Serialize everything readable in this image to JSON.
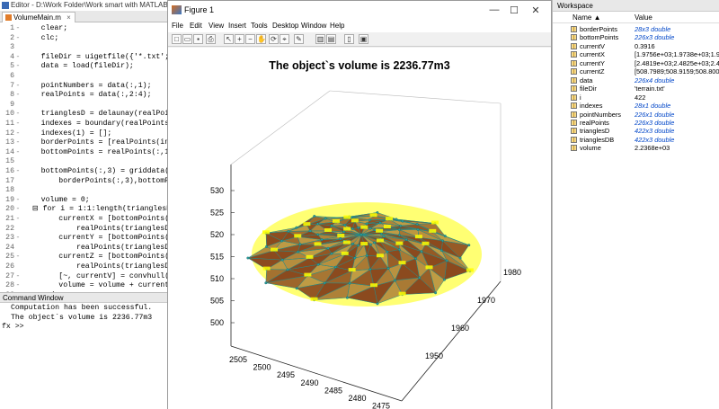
{
  "editor": {
    "title": "Editor - D:\\Work Folder\\Work smart with MATLAB\\Scripts\\Vo",
    "tab_label": "VolumeMain.m",
    "tab_close": "×",
    "lines": [
      {
        "n": "1",
        "dash": "-",
        "code": "    clear;"
      },
      {
        "n": "2",
        "dash": "-",
        "code": "    clc;"
      },
      {
        "n": "3",
        "dash": "",
        "code": ""
      },
      {
        "n": "4",
        "dash": "-",
        "code": "    fileDir = uigetfile({'*.txt';'*.kpt"
      },
      {
        "n": "5",
        "dash": "-",
        "code": "    data = load(fileDir);"
      },
      {
        "n": "6",
        "dash": "",
        "code": ""
      },
      {
        "n": "7",
        "dash": "-",
        "code": "    pointNumbers = data(:,1);"
      },
      {
        "n": "8",
        "dash": "-",
        "code": "    realPoints = data(:,2:4);"
      },
      {
        "n": "9",
        "dash": "",
        "code": ""
      },
      {
        "n": "10",
        "dash": "-",
        "code": "    trianglesD = delaunay(realPoints(:,"
      },
      {
        "n": "11",
        "dash": "-",
        "code": "    indexes = boundary(realPoints(:,1),"
      },
      {
        "n": "12",
        "dash": "-",
        "code": "    indexes(1) = [];"
      },
      {
        "n": "13",
        "dash": "-",
        "code": "    borderPoints = [realPoints(indexes,"
      },
      {
        "n": "14",
        "dash": "-",
        "code": "    bottomPoints = realPoints(:,1:2);"
      },
      {
        "n": "15",
        "dash": "",
        "code": ""
      },
      {
        "n": "16",
        "dash": "-",
        "code": "    bottomPoints(:,3) = griddata(border"
      },
      {
        "n": "17",
        "dash": "",
        "code": "        borderPoints(:,3),bottomPoints("
      },
      {
        "n": "18",
        "dash": "",
        "code": ""
      },
      {
        "n": "19",
        "dash": "-",
        "code": "    volume = 0;"
      },
      {
        "n": "20",
        "dash": "-",
        "code": "  ⊟ for i = 1:1:length(trianglesD(:,1))"
      },
      {
        "n": "21",
        "dash": "-",
        "code": "        currentX = [bottomPoints(triang"
      },
      {
        "n": "22",
        "dash": "",
        "code": "            realPoints(trianglesD(i,1),"
      },
      {
        "n": "23",
        "dash": "-",
        "code": "        currentY = [bottomPoints(triang"
      },
      {
        "n": "24",
        "dash": "",
        "code": "            realPoints(trianglesD(i,1),"
      },
      {
        "n": "25",
        "dash": "-",
        "code": "        currentZ = [bottomPoints(triang"
      },
      {
        "n": "26",
        "dash": "",
        "code": "            realPoints(trianglesD(i,1),"
      },
      {
        "n": "27",
        "dash": "-",
        "code": "        [~, currentV] = convhull(curren"
      },
      {
        "n": "28",
        "dash": "-",
        "code": "        volume = volume + currentV;"
      },
      {
        "n": "29",
        "dash": "-",
        "code": "    end"
      },
      {
        "n": "30",
        "dash": "",
        "code": ""
      },
      {
        "n": "31",
        "dash": "",
        "code": "    figure"
      }
    ]
  },
  "command_window": {
    "title": "Command Window",
    "lines": [
      "Computation has been successful.",
      "The object`s volume is 2236.77m3"
    ],
    "prompt": "fx >>"
  },
  "figure": {
    "title": "Figure 1",
    "min_glyph": "—",
    "max_glyph": "☐",
    "close_glyph": "✕",
    "menu": [
      "File",
      "Edit",
      "View",
      "Insert",
      "Tools",
      "Desktop",
      "Window",
      "Help"
    ],
    "toolbar_icons": [
      "new-file-icon",
      "open-file-icon",
      "save-icon",
      "print-icon",
      "pointer-icon",
      "zoom-in-icon",
      "zoom-out-icon",
      "pan-icon",
      "rotate-icon",
      "data-cursor-icon",
      "brush-icon",
      "colorbar-icon",
      "legend-icon",
      "hide-plot-tools-icon",
      "show-plot-tools-icon"
    ],
    "toolbar_glyphs": [
      "□",
      "▭",
      "▪",
      "⎙",
      "↖",
      "+",
      "−",
      "✋",
      "⟳",
      "⌖",
      "✎",
      "▥",
      "▤",
      "▯",
      "▣"
    ],
    "plot_title": "The object`s volume is 2236.77m3"
  },
  "chart_data": {
    "type": "surface",
    "title": "The object`s volume is 2236.77m3",
    "z_ticks": [
      "500",
      "505",
      "510",
      "515",
      "520",
      "525",
      "530"
    ],
    "x_ticks": [
      "2505",
      "2500",
      "2495",
      "2490",
      "2485",
      "2480",
      "2475"
    ],
    "y_ticks": [
      "1950",
      "1960",
      "1970",
      "1980"
    ],
    "zlim": [
      500,
      530
    ],
    "surface_color": "#8b4a1e",
    "edge_color": "#1f8f8f",
    "label_color": "#ffff00",
    "grid": false
  },
  "workspace": {
    "title": "Workspace",
    "col_name": "Name ▲",
    "col_value": "Value",
    "rows": [
      {
        "name": "borderPoints",
        "value": "28x3 double",
        "blue": true
      },
      {
        "name": "bottomPoints",
        "value": "226x3 double",
        "blue": true
      },
      {
        "name": "currentV",
        "value": "0.3916",
        "blue": false
      },
      {
        "name": "currentX",
        "value": "[1.9756e+03;1.9738e+03;1.9740e+",
        "blue": false
      },
      {
        "name": "currentY",
        "value": "[2.4819e+03;2.4825e+03;2.4805e+",
        "blue": false
      },
      {
        "name": "currentZ",
        "value": "[508.7989;508.9159;508.8008;508.8",
        "blue": false
      },
      {
        "name": "data",
        "value": "226x4 double",
        "blue": true
      },
      {
        "name": "fileDir",
        "value": "'terrain.txt'",
        "blue": false
      },
      {
        "name": "i",
        "value": "422",
        "blue": false
      },
      {
        "name": "indexes",
        "value": "28x1 double",
        "blue": true
      },
      {
        "name": "pointNumbers",
        "value": "226x1 double",
        "blue": true
      },
      {
        "name": "realPoints",
        "value": "226x3 double",
        "blue": true
      },
      {
        "name": "trianglesD",
        "value": "422x3 double",
        "blue": true
      },
      {
        "name": "trianglesDB",
        "value": "422x3 double",
        "blue": true
      },
      {
        "name": "volume",
        "value": "2.2368e+03",
        "blue": false
      }
    ]
  }
}
